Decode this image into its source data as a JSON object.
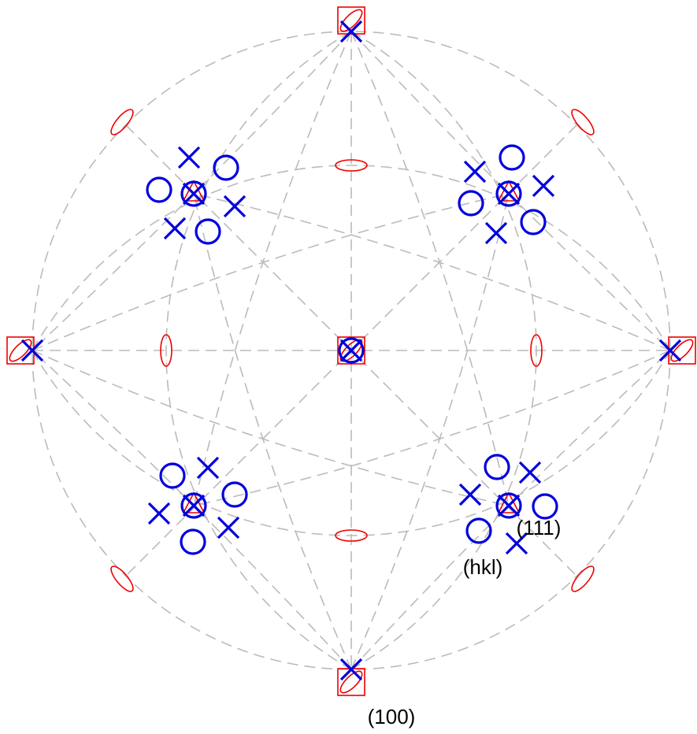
{
  "labels": [
    "(111)",
    "(hkl)",
    "(100)"
  ]
}
